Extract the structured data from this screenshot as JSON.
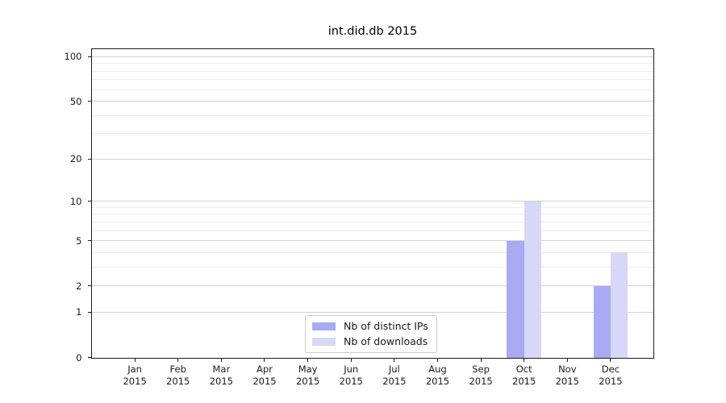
{
  "chart_data": {
    "type": "bar",
    "title": "int.did.db 2015",
    "categories": [
      "Jan",
      "Feb",
      "Mar",
      "Apr",
      "May",
      "Jun",
      "Jul",
      "Aug",
      "Sep",
      "Oct",
      "Nov",
      "Dec"
    ],
    "category_sublabel": "2015",
    "series": [
      {
        "name": "Nb of distinct IPs",
        "color": "#a9a9f4",
        "values": [
          0,
          0,
          0,
          0,
          0,
          0,
          0,
          0,
          0,
          5,
          0,
          2
        ]
      },
      {
        "name": "Nb of downloads",
        "color": "#d7d7f7",
        "values": [
          0,
          0,
          0,
          0,
          0,
          0,
          0,
          0,
          0,
          10,
          0,
          4
        ]
      }
    ],
    "xlabel": "",
    "ylabel": "",
    "yscale": "log1p",
    "ylim": [
      0,
      113
    ],
    "yticks": [
      0,
      1,
      2,
      5,
      10,
      20,
      50,
      100
    ],
    "yticks_minor": [
      3,
      4,
      6,
      7,
      8,
      9,
      30,
      40,
      60,
      70,
      80,
      90
    ],
    "grid": "horizontal",
    "legend_position": "lower-center",
    "colors": {
      "major_grid": "#d2d2d2",
      "minor_grid": "#eeeeee",
      "axis": "#1c1c1c",
      "text": "#1a1a1a",
      "background": "#ffffff"
    }
  }
}
